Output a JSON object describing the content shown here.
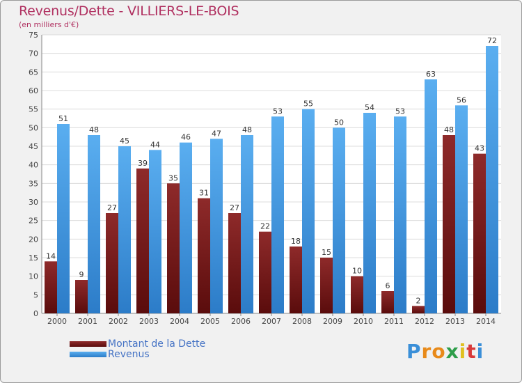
{
  "chart_data": {
    "type": "bar",
    "title": "Revenus/Dette - VILLIERS-LE-BOIS",
    "subtitle": "(en milliers d'€)",
    "xlabel": "",
    "ylabel": "",
    "ylim": [
      0,
      75
    ],
    "yticks": [
      0,
      5,
      10,
      15,
      20,
      25,
      30,
      35,
      40,
      45,
      50,
      55,
      60,
      65,
      70,
      75
    ],
    "grid": true,
    "categories": [
      "2000",
      "2001",
      "2002",
      "2003",
      "2004",
      "2005",
      "2006",
      "2007",
      "2008",
      "2009",
      "2010",
      "2011",
      "2012",
      "2013",
      "2014"
    ],
    "series": [
      {
        "name": "Montant de la Dette",
        "color": "#7a1c1c",
        "values": [
          14,
          9,
          27,
          39,
          35,
          31,
          27,
          22,
          18,
          15,
          10,
          6,
          2,
          48,
          43
        ]
      },
      {
        "name": "Revenus",
        "color": "#4a9fe0",
        "values": [
          51,
          48,
          45,
          44,
          46,
          47,
          48,
          53,
          55,
          50,
          54,
          53,
          63,
          56,
          72
        ]
      }
    ],
    "legend_position": "bottom-left"
  },
  "logo": {
    "letters": [
      "P",
      "r",
      "o",
      "x",
      "i",
      "t",
      "i"
    ],
    "colors": [
      "#3a8fd8",
      "#e88a1a",
      "#e88a1a",
      "#2e9e4a",
      "#e0c020",
      "#d83a3a",
      "#3a8fd8"
    ]
  }
}
